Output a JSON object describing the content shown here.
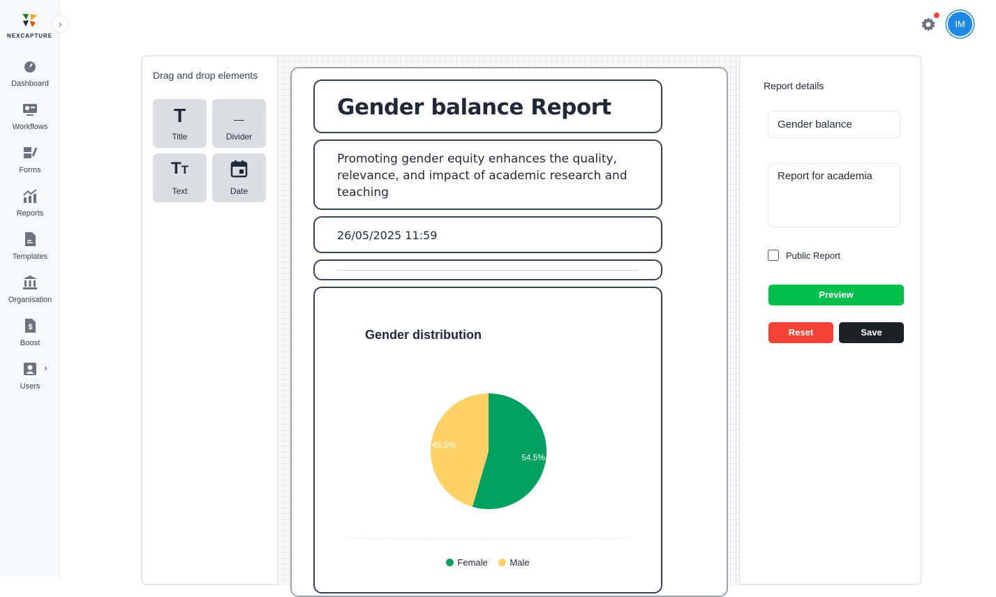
{
  "brand": {
    "name": "NEXCAPTURE"
  },
  "sidebar": {
    "items": [
      {
        "label": "Dashboard",
        "icon": "dashboard-icon"
      },
      {
        "label": "Workflows",
        "icon": "workflows-icon"
      },
      {
        "label": "Forms",
        "icon": "forms-icon"
      },
      {
        "label": "Reports",
        "icon": "reports-icon"
      },
      {
        "label": "Templates",
        "icon": "templates-icon"
      },
      {
        "label": "Organisation",
        "icon": "organisation-icon"
      },
      {
        "label": "Boost",
        "icon": "boost-icon"
      },
      {
        "label": "Users",
        "icon": "users-icon"
      }
    ]
  },
  "header": {
    "avatar_initials": "IM"
  },
  "palette": {
    "title": "Drag and drop elements",
    "tiles": [
      {
        "label": "Title",
        "glyph": "T",
        "icon": "title-icon"
      },
      {
        "label": "Divider",
        "glyph": "_",
        "icon": "divider-icon"
      },
      {
        "label": "Text",
        "glyph": "TT",
        "icon": "text-icon"
      },
      {
        "label": "Date",
        "glyph": "▣",
        "icon": "date-icon"
      }
    ]
  },
  "report": {
    "title": "Gender balance Report",
    "text": "Promoting gender equity enhances the quality, relevance, and impact of academic research and teaching",
    "date": "26/05/2025 11:59"
  },
  "chart_data": {
    "type": "pie",
    "title": "Gender distribution",
    "categories": [
      "Female",
      "Male"
    ],
    "values": [
      54.5,
      45.5
    ],
    "labels": [
      "54.5%",
      "45.5%"
    ],
    "colors": [
      "#00a060",
      "#ffd166"
    ],
    "legend": "bottom"
  },
  "details": {
    "title": "Report details",
    "name_value": "Gender balance",
    "description_value": "Report for academia",
    "public_label": "Public Report",
    "public_checked": false,
    "preview_label": "Preview",
    "reset_label": "Reset",
    "save_label": "Save"
  }
}
